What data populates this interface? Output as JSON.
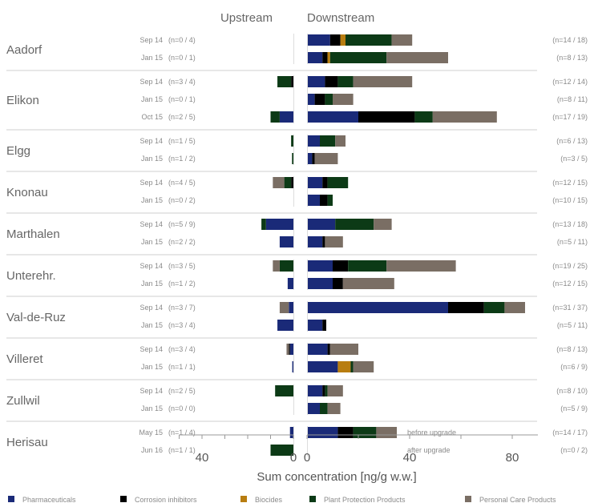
{
  "chart_data": {
    "type": "bar",
    "orientation": "horizontal",
    "panels": [
      "Upstream",
      "Downstream"
    ],
    "xlabel": "Sum concentration [ng/g w.w.]",
    "upstream_xlim": [
      0,
      50
    ],
    "upstream_ticks": [
      40,
      0
    ],
    "downstream_xlim": [
      0,
      90
    ],
    "downstream_ticks": [
      0,
      40,
      80
    ],
    "legend_position": "bottom",
    "categories": [
      "Pharmaceuticals",
      "Corrosion inhibitors",
      "Biocides",
      "Plant Protection Products",
      "Personal Care Products"
    ],
    "colors": [
      "#1a2a78",
      "#000000",
      "#b87d10",
      "#0c3a16",
      "#7a6e64"
    ],
    "sites": [
      {
        "name": "Aadorf",
        "rows": [
          {
            "date": "Sep 14",
            "up_n": "(n=0 / 4)",
            "up": [
              0,
              0,
              0,
              0,
              0
            ],
            "down": [
              9,
              4,
              2,
              18,
              8
            ],
            "down_n": "(n=14 / 18)"
          },
          {
            "date": "Jan 15",
            "up_n": "(n=0 / 1)",
            "up": [
              0,
              0,
              0,
              0,
              0
            ],
            "down": [
              6,
              2,
              1,
              22,
              24
            ],
            "down_n": "(n=8 / 13)"
          }
        ]
      },
      {
        "name": "Elikon",
        "rows": [
          {
            "date": "Sep 14",
            "up_n": "(n=3 / 4)",
            "up": [
              0,
              1,
              0,
              6,
              0
            ],
            "down": [
              7,
              5,
              0,
              6,
              23
            ],
            "down_n": "(n=12 / 14)"
          },
          {
            "date": "Jan 15",
            "up_n": "(n=0 / 1)",
            "up": [
              0,
              0,
              0,
              0,
              0
            ],
            "down": [
              3,
              4,
              0,
              3,
              8
            ],
            "down_n": "(n=8 / 11)"
          },
          {
            "date": "Oct 15",
            "up_n": "(n=2 / 5)",
            "up": [
              6,
              0,
              0,
              4,
              0
            ],
            "down": [
              20,
              22,
              0,
              7,
              25
            ],
            "down_n": "(n=17 / 19)"
          }
        ]
      },
      {
        "name": "Elgg",
        "rows": [
          {
            "date": "Sep 14",
            "up_n": "(n=1 / 5)",
            "up": [
              0,
              0,
              0,
              1,
              0
            ],
            "down": [
              5,
              0,
              0,
              6,
              4
            ],
            "down_n": "(n=6 / 13)"
          },
          {
            "date": "Jan 15",
            "up_n": "(n=1 / 2)",
            "up": [
              0,
              0,
              0,
              0.6,
              0
            ],
            "down": [
              2,
              1,
              0,
              0,
              9
            ],
            "down_n": "(n=3 / 5)"
          }
        ]
      },
      {
        "name": "Knonau",
        "rows": [
          {
            "date": "Sep 14",
            "up_n": "(n=4 / 5)",
            "up": [
              0,
              1,
              0,
              3,
              5
            ],
            "down": [
              6,
              2,
              0,
              8,
              0
            ],
            "down_n": "(n=12 / 15)"
          },
          {
            "date": "Jan 15",
            "up_n": "(n=0 / 2)",
            "up": [
              0,
              0,
              0,
              0,
              0
            ],
            "down": [
              5,
              3,
              0,
              2,
              0
            ],
            "down_n": "(n=10 / 15)"
          }
        ]
      },
      {
        "name": "Marthalen",
        "rows": [
          {
            "date": "Sep 14",
            "up_n": "(n=5 / 9)",
            "up": [
              12,
              0,
              0,
              2,
              0
            ],
            "down": [
              11,
              0,
              0,
              15,
              7
            ],
            "down_n": "(n=13 / 18)"
          },
          {
            "date": "Jan 15",
            "up_n": "(n=2 / 2)",
            "up": [
              6,
              0,
              0,
              0,
              0
            ],
            "down": [
              6,
              1,
              0,
              0,
              7
            ],
            "down_n": "(n=5 / 11)"
          }
        ]
      },
      {
        "name": "Unterehr.",
        "rows": [
          {
            "date": "Sep 14",
            "up_n": "(n=3 / 5)",
            "up": [
              0,
              0,
              0,
              6,
              3
            ],
            "down": [
              10,
              6,
              0,
              15,
              27
            ],
            "down_n": "(n=19 / 25)"
          },
          {
            "date": "Jan 15",
            "up_n": "(n=1 / 2)",
            "up": [
              2.5,
              0,
              0,
              0,
              0
            ],
            "down": [
              10,
              4,
              0,
              0,
              20
            ],
            "down_n": "(n=12 / 15)"
          }
        ]
      },
      {
        "name": "Val-de-Ruz",
        "rows": [
          {
            "date": "Sep 14",
            "up_n": "(n=3 / 7)",
            "up": [
              2,
              0,
              0,
              0,
              4
            ],
            "down": [
              55,
              14,
              0,
              8,
              8
            ],
            "down_n": "(n=31 / 37)"
          },
          {
            "date": "Jan 15",
            "up_n": "(n=3 / 4)",
            "up": [
              7,
              0,
              0,
              0,
              0
            ],
            "down": [
              6,
              1.5,
              0,
              0,
              0
            ],
            "down_n": "(n=5 / 11)"
          }
        ]
      },
      {
        "name": "Villeret",
        "rows": [
          {
            "date": "Sep 14",
            "up_n": "(n=3 / 4)",
            "up": [
              1.5,
              0.5,
              0,
              0,
              1
            ],
            "down": [
              8,
              1,
              0,
              0,
              11
            ],
            "down_n": "(n=8 / 13)"
          },
          {
            "date": "Jan 15",
            "up_n": "(n=1 / 1)",
            "up": [
              0.5,
              0,
              0,
              0,
              0
            ],
            "down": [
              12,
              0,
              5,
              1,
              8
            ],
            "down_n": "(n=6 / 9)"
          }
        ]
      },
      {
        "name": "Zullwil",
        "rows": [
          {
            "date": "Sep 14",
            "up_n": "(n=2 / 5)",
            "up": [
              0,
              0,
              0,
              8,
              0
            ],
            "down": [
              6,
              1,
              0,
              1,
              6
            ],
            "down_n": "(n=8 / 10)"
          },
          {
            "date": "Jan 15",
            "up_n": "(n=0 / 0)",
            "up": [
              0,
              0,
              0,
              0,
              0
            ],
            "down": [
              5,
              0,
              0,
              3,
              5
            ],
            "down_n": "(n=5 / 9)"
          }
        ]
      },
      {
        "name": "Herisau",
        "rows": [
          {
            "date": "May 15",
            "up_n": "(n=1 / 4)",
            "up": [
              1.5,
              0,
              0,
              0,
              0
            ],
            "down": [
              12,
              6,
              0,
              9,
              8
            ],
            "down_n": "(n=14 / 17)",
            "note": "before upgrade"
          },
          {
            "date": "Jun 16",
            "up_n": "(n=1 / 1)",
            "up": [
              0,
              0,
              0,
              10,
              0
            ],
            "down": [
              0,
              0,
              0,
              0,
              0
            ],
            "down_n": "(n=0 / 2)",
            "note": "after upgrade"
          }
        ]
      }
    ]
  }
}
